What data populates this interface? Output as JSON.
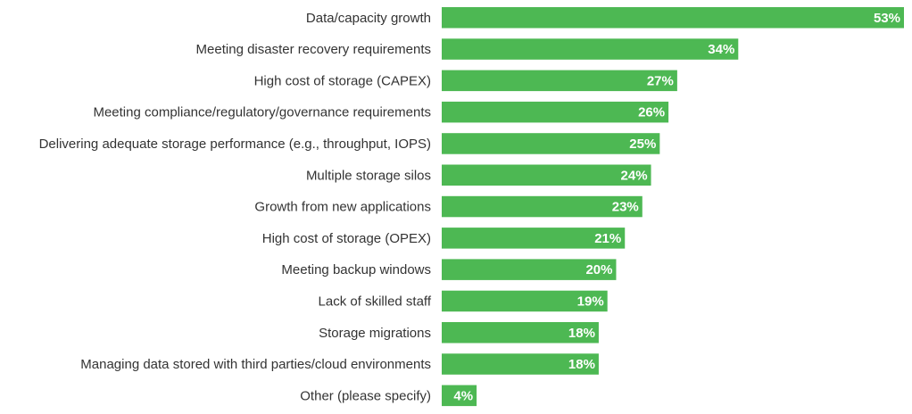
{
  "chart_data": {
    "type": "bar",
    "orientation": "horizontal",
    "categories": [
      "Data/capacity growth",
      "Meeting disaster recovery requirements",
      "High cost of storage (CAPEX)",
      "Meeting compliance/regulatory/governance requirements",
      "Delivering adequate storage performance (e.g., throughput, IOPS)",
      "Multiple storage silos",
      "Growth from new applications",
      "High cost of storage (OPEX)",
      "Meeting backup windows",
      "Lack of skilled staff",
      "Storage migrations",
      "Managing data stored with third parties/cloud environments",
      "Other (please specify)"
    ],
    "values": [
      53,
      34,
      27,
      26,
      25,
      24,
      23,
      21,
      20,
      19,
      18,
      18,
      4
    ],
    "value_labels": [
      "53%",
      "34%",
      "27%",
      "26%",
      "25%",
      "24%",
      "23%",
      "21%",
      "20%",
      "19%",
      "18%",
      "18%",
      "4%"
    ],
    "unit": "%",
    "xlim": [
      0,
      53
    ],
    "grid": false,
    "bar_color": "#4db853"
  }
}
